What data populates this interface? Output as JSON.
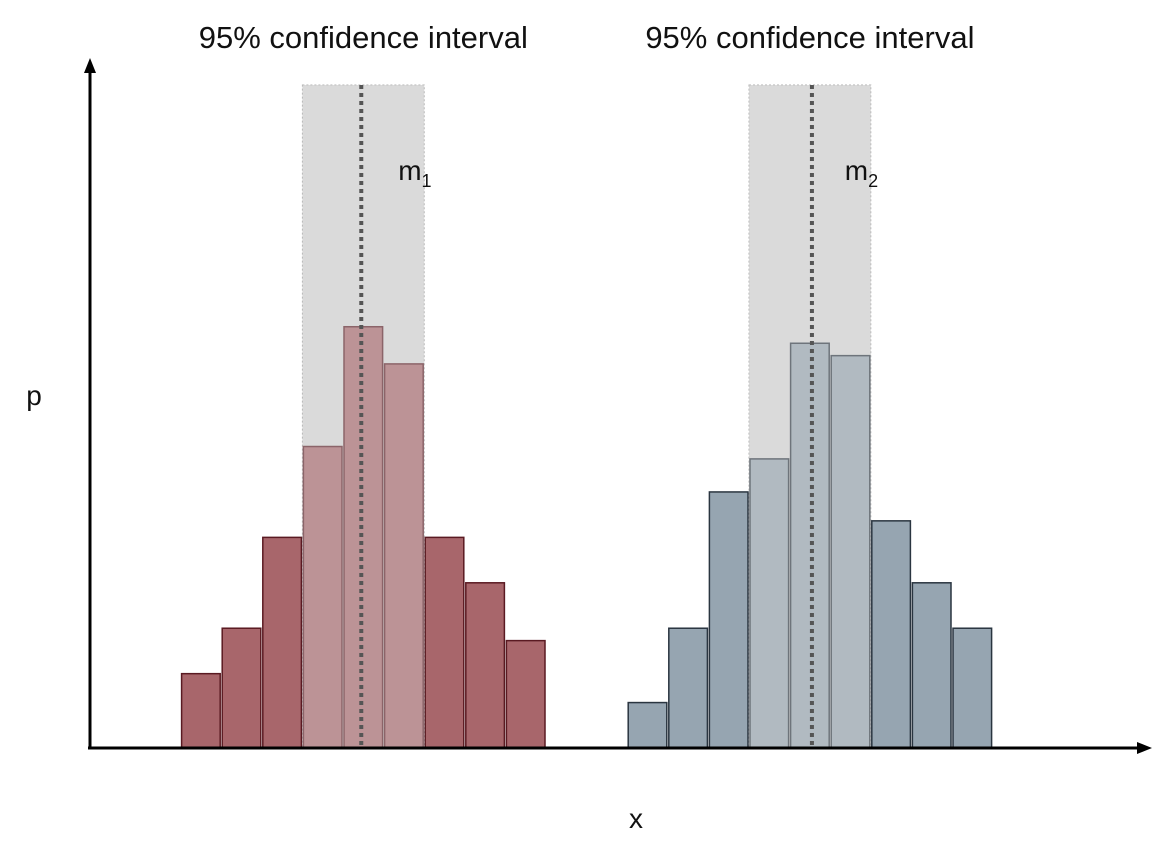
{
  "chart_data": {
    "type": "bar",
    "xlabel": "x",
    "ylabel": "p",
    "ylim": [
      0,
      100
    ],
    "grid": false,
    "distributions": [
      {
        "bins": [
          {
            "x0": 1,
            "x1": 2,
            "p": 18
          },
          {
            "x0": 2,
            "x1": 3,
            "p": 29
          },
          {
            "x0": 3,
            "x1": 4,
            "p": 51
          },
          {
            "x0": 4,
            "x1": 5,
            "p": 73
          },
          {
            "x0": 5,
            "x1": 6,
            "p": 102
          },
          {
            "x0": 6,
            "x1": 7,
            "p": 93
          },
          {
            "x0": 7,
            "x1": 8,
            "p": 51
          },
          {
            "x0": 8,
            "x1": 9,
            "p": 40
          },
          {
            "x0": 9,
            "x1": 10,
            "p": 26
          }
        ],
        "mean": 5.45,
        "mean_label": "m",
        "mean_subscript": "1",
        "ci": [
          4,
          7
        ],
        "ci_label": "95% confidence interval",
        "color": "#a8666b",
        "edge_color": "#5a1a22"
      },
      {
        "bins": [
          {
            "x0": 12,
            "x1": 13,
            "p": 11
          },
          {
            "x0": 13,
            "x1": 14,
            "p": 29
          },
          {
            "x0": 14,
            "x1": 15,
            "p": 62
          },
          {
            "x0": 15,
            "x1": 16,
            "p": 70
          },
          {
            "x0": 16,
            "x1": 17,
            "p": 98
          },
          {
            "x0": 17,
            "x1": 18,
            "p": 95
          },
          {
            "x0": 18,
            "x1": 19,
            "p": 55
          },
          {
            "x0": 19,
            "x1": 20,
            "p": 40
          },
          {
            "x0": 20,
            "x1": 21,
            "p": 29
          }
        ],
        "mean": 16.55,
        "mean_label": "m",
        "mean_subscript": "2",
        "ci": [
          15,
          18
        ],
        "ci_label": "95% confidence interval",
        "color": "#96a5b1",
        "edge_color": "#2a3540"
      }
    ]
  }
}
